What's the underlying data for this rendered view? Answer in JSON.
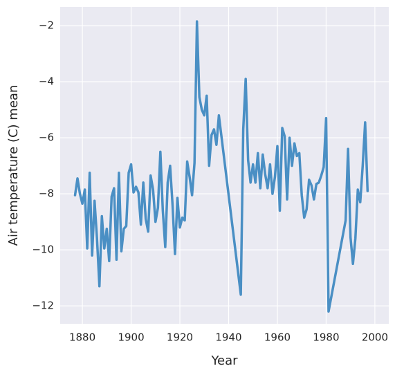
{
  "chart_data": {
    "type": "line",
    "xlabel": "Year",
    "ylabel": "Air temperature (C) mean",
    "x": [
      1877,
      1878,
      1879,
      1880,
      1881,
      1882,
      1883,
      1884,
      1885,
      1886,
      1887,
      1888,
      1889,
      1890,
      1891,
      1892,
      1893,
      1894,
      1895,
      1896,
      1897,
      1898,
      1899,
      1900,
      1901,
      1902,
      1903,
      1904,
      1905,
      1906,
      1907,
      1908,
      1909,
      1910,
      1911,
      1912,
      1913,
      1914,
      1915,
      1916,
      1917,
      1918,
      1919,
      1920,
      1921,
      1922,
      1923,
      1924,
      1925,
      1926,
      1927,
      1928,
      1929,
      1930,
      1931,
      1932,
      1933,
      1934,
      1935,
      1936,
      1945,
      1946,
      1947,
      1948,
      1949,
      1950,
      1951,
      1952,
      1953,
      1954,
      1955,
      1956,
      1957,
      1958,
      1959,
      1960,
      1961,
      1962,
      1963,
      1964,
      1965,
      1966,
      1967,
      1968,
      1969,
      1970,
      1971,
      1972,
      1973,
      1974,
      1975,
      1976,
      1977,
      1978,
      1979,
      1980,
      1981,
      1988,
      1989,
      1990,
      1991,
      1992,
      1993,
      1994,
      1995,
      1996,
      1997
    ],
    "values": [
      -8.05,
      -7.45,
      -8.0,
      -8.35,
      -7.85,
      -9.95,
      -7.25,
      -10.2,
      -8.25,
      -9.6,
      -11.3,
      -8.8,
      -9.95,
      -9.25,
      -10.4,
      -8.1,
      -7.8,
      -10.35,
      -7.25,
      -10.05,
      -9.25,
      -9.15,
      -7.25,
      -6.95,
      -7.95,
      -7.75,
      -7.95,
      -9.1,
      -7.6,
      -8.9,
      -9.35,
      -7.35,
      -7.85,
      -9.0,
      -8.5,
      -6.5,
      -8.6,
      -9.9,
      -7.6,
      -7.0,
      -8.4,
      -10.15,
      -8.15,
      -9.2,
      -8.85,
      -8.95,
      -6.85,
      -7.4,
      -8.05,
      -6.9,
      -1.85,
      -4.55,
      -5.0,
      -5.2,
      -4.5,
      -7.0,
      -5.9,
      -5.7,
      -6.25,
      -5.2,
      -11.6,
      -5.7,
      -3.9,
      -6.8,
      -7.6,
      -6.95,
      -7.6,
      -6.55,
      -7.8,
      -6.6,
      -7.3,
      -7.8,
      -6.95,
      -8.0,
      -7.4,
      -6.3,
      -8.6,
      -5.65,
      -5.95,
      -8.2,
      -6.0,
      -7.0,
      -6.2,
      -6.65,
      -6.55,
      -8.05,
      -8.85,
      -8.55,
      -7.5,
      -7.7,
      -8.2,
      -7.65,
      -7.6,
      -7.35,
      -7.05,
      -5.3,
      -12.2,
      -8.95,
      -6.4,
      -9.55,
      -10.5,
      -9.6,
      -7.85,
      -8.3,
      -7.0,
      -5.45,
      -7.9
    ],
    "color": "#4a8fc4",
    "xlim": [
      1870.9,
      2005.7
    ],
    "ylim": [
      -12.64,
      -1.33
    ],
    "xticks": [
      1880,
      1900,
      1920,
      1940,
      1960,
      1980,
      2000
    ],
    "yticks": [
      {
        "value": -12,
        "label": "−12"
      },
      {
        "value": -10,
        "label": "−10"
      },
      {
        "value": -8,
        "label": "−8"
      },
      {
        "value": -6,
        "label": "−6"
      },
      {
        "value": -4,
        "label": "−4"
      },
      {
        "value": -2,
        "label": "−2"
      }
    ],
    "grid": true
  }
}
